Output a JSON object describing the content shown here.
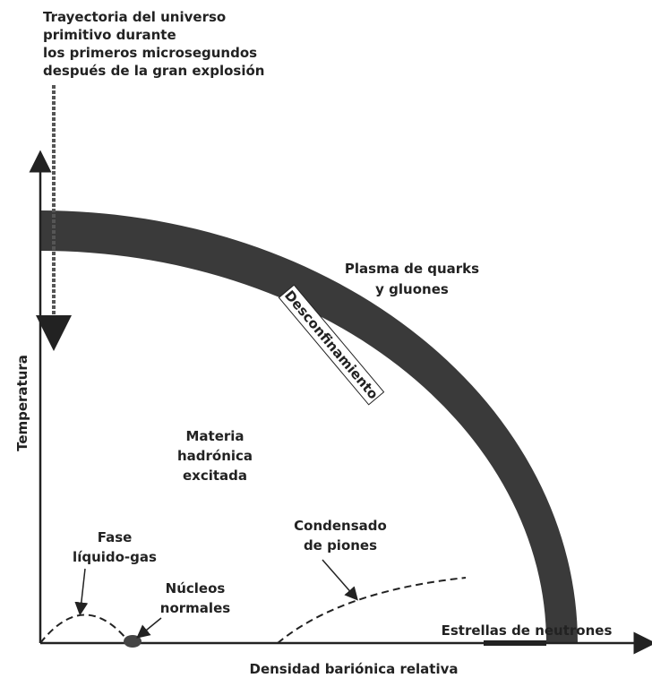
{
  "title": [
    "Trayectoria del universo",
    "primitivo durante",
    "los primeros microsegundos",
    "después de la gran explosión"
  ],
  "regions": {
    "plasma": [
      "Plasma de quarks",
      "y gluones"
    ],
    "band": "Desconfinamiento",
    "hadronic": [
      "Materia",
      "hadrónica",
      "excitada"
    ],
    "pion": [
      "Condensado",
      "de piones"
    ],
    "liquid_gas": [
      "Fase",
      "líquido-gas"
    ],
    "nuclei": [
      "Núcleos",
      "normales"
    ],
    "neutron_stars": "Estrellas de neutrones"
  },
  "axes": {
    "y": "Temperatura",
    "x": "Densidad bariónica relativa"
  }
}
